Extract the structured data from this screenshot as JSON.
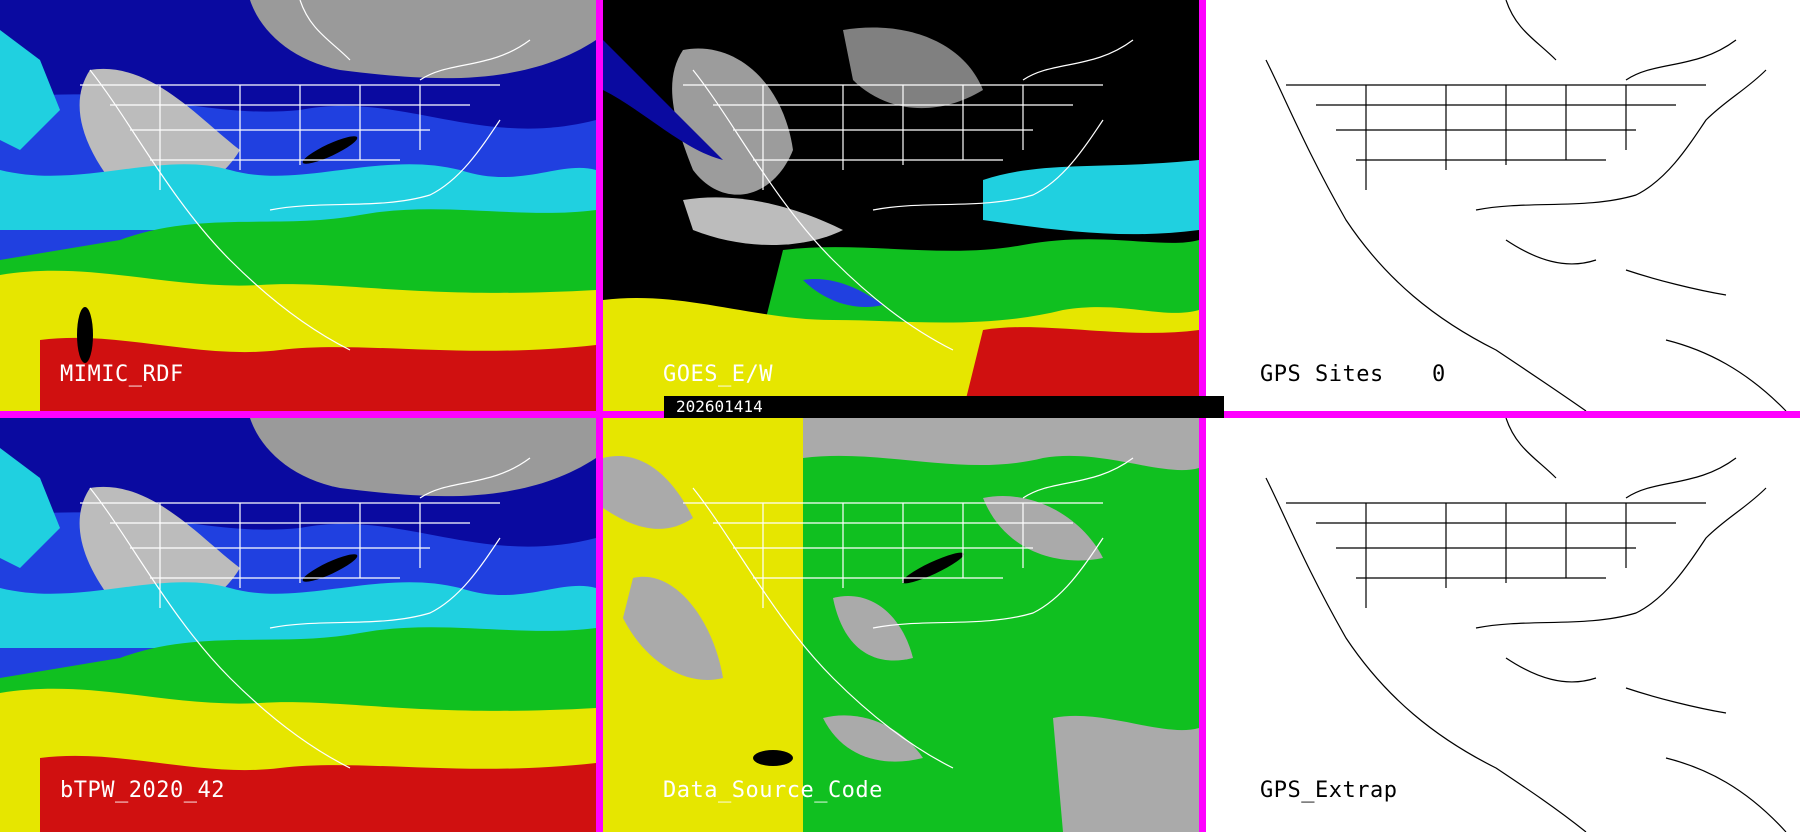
{
  "panels": {
    "mimic": {
      "label": "MIMIC_RDF"
    },
    "goes": {
      "label": "GOES_E/W"
    },
    "gps_sites": {
      "label": "GPS Sites",
      "count": "0"
    },
    "btpw": {
      "label": "bTPW_2020_42"
    },
    "data_source": {
      "label": "Data_Source_Code"
    },
    "gps_extrap": {
      "label": "GPS_Extrap"
    }
  },
  "timestamp": "202601414",
  "colors": {
    "border": "#ff00ff",
    "gray_land": "#aaaaaa",
    "dark_blue": "#0a0aa0",
    "blue": "#2040e0",
    "cyan": "#20d0e0",
    "green": "#10c020",
    "yellow": "#e6e600",
    "red": "#d01010"
  }
}
